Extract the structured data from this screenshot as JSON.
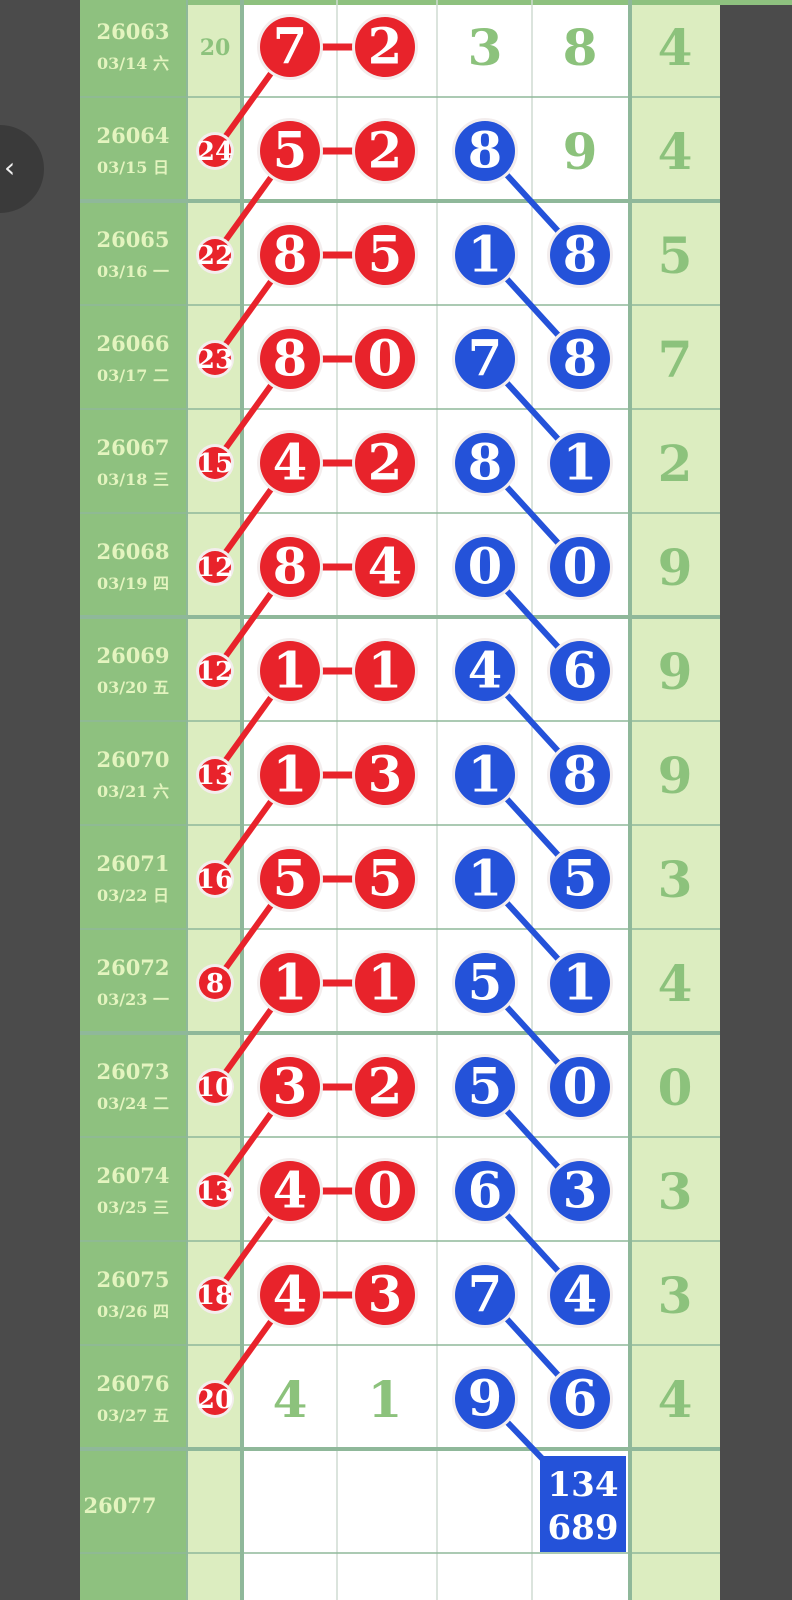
{
  "colors": {
    "red": "#e8232b",
    "blue": "#2452d9",
    "period_bg": "#8ec17f",
    "period_text": "#e4f4bf",
    "sum_bg": "#dcedc0",
    "plain_text": "#8cc27c",
    "grid": "#8fb89a"
  },
  "rows": [
    {
      "period": "26063",
      "date": "03/14 六",
      "sum": "20",
      "sum_circled": false,
      "a": "7",
      "b": "2",
      "ab_red": true,
      "c": "3",
      "d": "8",
      "c_blue": false,
      "d_blue": false,
      "last": "4"
    },
    {
      "period": "26064",
      "date": "03/15 日",
      "sum": "24",
      "sum_circled": true,
      "a": "5",
      "b": "2",
      "ab_red": true,
      "c": "8",
      "d": "9",
      "c_blue": true,
      "d_blue": false,
      "last": "4"
    },
    {
      "period": "26065",
      "date": "03/16 一",
      "sum": "22",
      "sum_circled": true,
      "a": "8",
      "b": "5",
      "ab_red": true,
      "c": "1",
      "d": "8",
      "c_blue": true,
      "d_blue": true,
      "last": "5"
    },
    {
      "period": "26066",
      "date": "03/17 二",
      "sum": "23",
      "sum_circled": true,
      "a": "8",
      "b": "0",
      "ab_red": true,
      "c": "7",
      "d": "8",
      "c_blue": true,
      "d_blue": true,
      "last": "7"
    },
    {
      "period": "26067",
      "date": "03/18 三",
      "sum": "15",
      "sum_circled": true,
      "a": "4",
      "b": "2",
      "ab_red": true,
      "c": "8",
      "d": "1",
      "c_blue": true,
      "d_blue": true,
      "last": "2"
    },
    {
      "period": "26068",
      "date": "03/19 四",
      "sum": "12",
      "sum_circled": true,
      "a": "8",
      "b": "4",
      "ab_red": true,
      "c": "0",
      "d": "0",
      "c_blue": true,
      "d_blue": true,
      "last": "9"
    },
    {
      "period": "26069",
      "date": "03/20 五",
      "sum": "12",
      "sum_circled": true,
      "a": "1",
      "b": "1",
      "ab_red": true,
      "c": "4",
      "d": "6",
      "c_blue": true,
      "d_blue": true,
      "last": "9"
    },
    {
      "period": "26070",
      "date": "03/21 六",
      "sum": "13",
      "sum_circled": true,
      "a": "1",
      "b": "3",
      "ab_red": true,
      "c": "1",
      "d": "8",
      "c_blue": true,
      "d_blue": true,
      "last": "9"
    },
    {
      "period": "26071",
      "date": "03/22 日",
      "sum": "16",
      "sum_circled": true,
      "a": "5",
      "b": "5",
      "ab_red": true,
      "c": "1",
      "d": "5",
      "c_blue": true,
      "d_blue": true,
      "last": "3"
    },
    {
      "period": "26072",
      "date": "03/23 一",
      "sum": "8",
      "sum_circled": true,
      "a": "1",
      "b": "1",
      "ab_red": true,
      "c": "5",
      "d": "1",
      "c_blue": true,
      "d_blue": true,
      "last": "4"
    },
    {
      "period": "26073",
      "date": "03/24 二",
      "sum": "10",
      "sum_circled": true,
      "a": "3",
      "b": "2",
      "ab_red": true,
      "c": "5",
      "d": "0",
      "c_blue": true,
      "d_blue": true,
      "last": "0"
    },
    {
      "period": "26074",
      "date": "03/25 三",
      "sum": "13",
      "sum_circled": true,
      "a": "4",
      "b": "0",
      "ab_red": true,
      "c": "6",
      "d": "3",
      "c_blue": true,
      "d_blue": true,
      "last": "3"
    },
    {
      "period": "26075",
      "date": "03/26 四",
      "sum": "18",
      "sum_circled": true,
      "a": "4",
      "b": "3",
      "ab_red": true,
      "c": "7",
      "d": "4",
      "c_blue": true,
      "d_blue": true,
      "last": "3"
    },
    {
      "period": "26076",
      "date": "03/27 五",
      "sum": "20",
      "sum_circled": true,
      "a": "4",
      "b": "1",
      "ab_red": false,
      "c": "9",
      "d": "6",
      "c_blue": true,
      "d_blue": true,
      "last": "4"
    }
  ],
  "next": {
    "period": "26077",
    "prediction_line1": "134",
    "prediction_line2": "689"
  },
  "side_button_icon": "chevron-left-right-icon"
}
